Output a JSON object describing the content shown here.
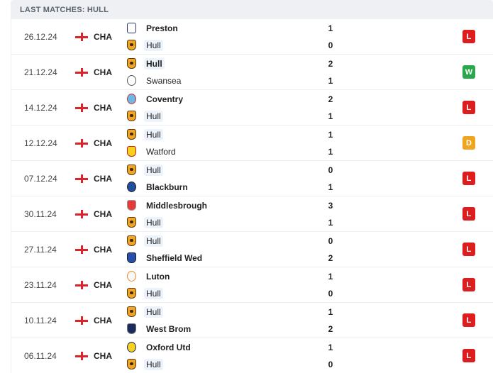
{
  "header": {
    "title": "LAST MATCHES: HULL"
  },
  "matches": [
    {
      "date": "26.12.24",
      "competition": "CHA",
      "home": "Preston",
      "home_crest": "preston-crest",
      "away": "Hull",
      "away_crest": "hull-crest",
      "home_score": "1",
      "away_score": "0",
      "result": "L",
      "result_color": "#dc1e1e"
    },
    {
      "date": "21.12.24",
      "competition": "CHA",
      "home": "Hull",
      "home_crest": "hull-crest",
      "away": "Swansea",
      "away_crest": "swansea-crest",
      "home_score": "2",
      "away_score": "1",
      "result": "W",
      "result_color": "#2aa74a"
    },
    {
      "date": "14.12.24",
      "competition": "CHA",
      "home": "Coventry",
      "home_crest": "coventry-crest",
      "away": "Hull",
      "away_crest": "hull-crest",
      "home_score": "2",
      "away_score": "1",
      "result": "L",
      "result_color": "#dc1e1e"
    },
    {
      "date": "12.12.24",
      "competition": "CHA",
      "home": "Hull",
      "home_crest": "hull-crest",
      "away": "Watford",
      "away_crest": "watford-crest",
      "home_score": "1",
      "away_score": "1",
      "result": "D",
      "result_color": "#efa51e"
    },
    {
      "date": "07.12.24",
      "competition": "CHA",
      "home": "Hull",
      "home_crest": "hull-crest",
      "away": "Blackburn",
      "away_crest": "blackburn-crest",
      "home_score": "0",
      "away_score": "1",
      "result": "L",
      "result_color": "#dc1e1e"
    },
    {
      "date": "30.11.24",
      "competition": "CHA",
      "home": "Middlesbrough",
      "home_crest": "middlesbrough-crest",
      "away": "Hull",
      "away_crest": "hull-crest",
      "home_score": "3",
      "away_score": "1",
      "result": "L",
      "result_color": "#dc1e1e"
    },
    {
      "date": "27.11.24",
      "competition": "CHA",
      "home": "Hull",
      "home_crest": "hull-crest",
      "away": "Sheffield Wed",
      "away_crest": "sheffield-wed-crest",
      "home_score": "0",
      "away_score": "2",
      "result": "L",
      "result_color": "#dc1e1e"
    },
    {
      "date": "23.11.24",
      "competition": "CHA",
      "home": "Luton",
      "home_crest": "luton-crest",
      "away": "Hull",
      "away_crest": "hull-crest",
      "home_score": "1",
      "away_score": "0",
      "result": "L",
      "result_color": "#dc1e1e"
    },
    {
      "date": "10.11.24",
      "competition": "CHA",
      "home": "Hull",
      "home_crest": "hull-crest",
      "away": "West Brom",
      "away_crest": "west-brom-crest",
      "home_score": "1",
      "away_score": "2",
      "result": "L",
      "result_color": "#dc1e1e"
    },
    {
      "date": "06.11.24",
      "competition": "CHA",
      "home": "Oxford Utd",
      "home_crest": "oxford-utd-crest",
      "away": "Hull",
      "away_crest": "hull-crest",
      "home_score": "1",
      "away_score": "0",
      "result": "L",
      "result_color": "#dc1e1e"
    }
  ]
}
